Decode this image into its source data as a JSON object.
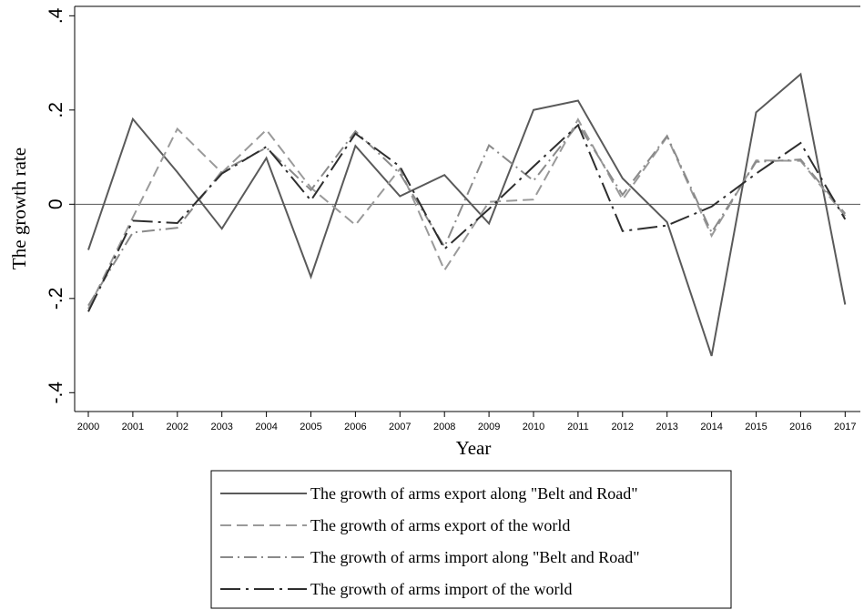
{
  "chart_data": {
    "type": "line",
    "xlabel": "Year",
    "ylabel": "The growth rate",
    "x": [
      2000,
      2001,
      2002,
      2003,
      2004,
      2005,
      2006,
      2007,
      2008,
      2009,
      2010,
      2011,
      2012,
      2013,
      2014,
      2015,
      2016,
      2017
    ],
    "x_tick_labels": [
      "2000",
      "2001",
      "2002",
      "2003",
      "2004",
      "2005",
      "2006",
      "2007",
      "2008",
      "2009",
      "2010",
      "2011",
      "2012",
      "2013",
      "2014",
      "2015",
      "2016",
      "2017"
    ],
    "ylim": [
      -0.44,
      0.42
    ],
    "y_ticks": [
      -0.4,
      -0.2,
      0,
      0.2,
      0.4
    ],
    "y_tick_labels": [
      "-.4",
      "-.2",
      "0",
      ".2",
      ".4"
    ],
    "reference_line_y": 0,
    "grid": false,
    "legend_position": "bottom",
    "series": [
      {
        "name": "The growth of arms export along \"Belt and Road\"",
        "color": "#5a5a5a",
        "dash": "solid",
        "values": [
          -0.097,
          0.181,
          0.068,
          -0.052,
          0.098,
          -0.154,
          0.124,
          0.017,
          0.062,
          -0.041,
          0.2,
          0.22,
          0.055,
          -0.038,
          -0.322,
          0.195,
          0.276,
          -0.213
        ]
      },
      {
        "name": "The growth of arms export of the world",
        "color": "#9a9a9a",
        "dash": "dashed",
        "values": [
          -0.222,
          -0.028,
          0.16,
          0.067,
          0.158,
          0.035,
          -0.044,
          0.075,
          -0.14,
          0.005,
          0.01,
          0.18,
          0.01,
          0.143,
          -0.067,
          0.093,
          0.092,
          -0.025
        ]
      },
      {
        "name": "The growth of arms import along \"Belt and Road\"",
        "color": "#8a8a8a",
        "dash": "dashdot",
        "values": [
          -0.215,
          -0.06,
          -0.05,
          0.07,
          0.12,
          0.03,
          0.155,
          0.065,
          -0.09,
          0.125,
          0.05,
          0.17,
          0.02,
          0.145,
          -0.06,
          0.09,
          0.095,
          -0.02
        ]
      },
      {
        "name": "The growth of arms import of the world",
        "color": "#2e2e2e",
        "dash": "longdash",
        "values": [
          -0.228,
          -0.035,
          -0.04,
          0.065,
          0.122,
          0.008,
          0.15,
          0.08,
          -0.095,
          -0.01,
          0.08,
          0.168,
          -0.057,
          -0.045,
          -0.005,
          0.065,
          0.13,
          -0.032
        ]
      }
    ]
  }
}
